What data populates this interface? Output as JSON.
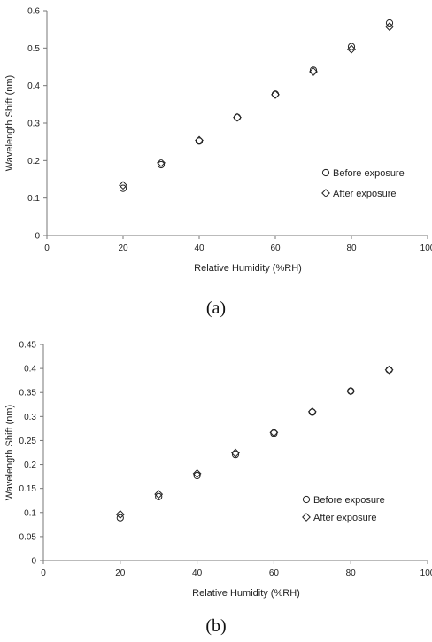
{
  "chart_data": [
    {
      "type": "scatter",
      "caption": "(a)",
      "xlabel": "Relative Humidity (%RH)",
      "ylabel": "Wavelength Shift (nm)",
      "xlim": [
        0,
        100
      ],
      "ylim": [
        0,
        0.6
      ],
      "xticks": [
        "0",
        "20",
        "40",
        "60",
        "80",
        "100"
      ],
      "yticks": [
        "0",
        "0.1",
        "0.2",
        "0.3",
        "0.4",
        "0.5",
        "0.6"
      ],
      "grid": false,
      "legend_position": "right",
      "series": [
        {
          "name": "Before exposure",
          "marker": "circle",
          "x": [
            20,
            30,
            40,
            50,
            60,
            70,
            80,
            90
          ],
          "y": [
            0.126,
            0.189,
            0.252,
            0.315,
            0.377,
            0.441,
            0.504,
            0.567
          ]
        },
        {
          "name": "After exposure",
          "marker": "diamond",
          "x": [
            20,
            30,
            40,
            50,
            60,
            70,
            80,
            90
          ],
          "y": [
            0.134,
            0.194,
            0.254,
            0.315,
            0.376,
            0.437,
            0.497,
            0.557
          ]
        }
      ]
    },
    {
      "type": "scatter",
      "caption": "(b)",
      "xlabel": "Relative Humidity (%RH)",
      "ylabel": "Wavelength Shift (nm)",
      "xlim": [
        0,
        100
      ],
      "ylim": [
        0,
        0.45
      ],
      "xticks": [
        "0",
        "20",
        "40",
        "60",
        "80",
        "100"
      ],
      "yticks": [
        "0",
        "0.05",
        "0.1",
        "0.15",
        "0.2",
        "0.25",
        "0.3",
        "0.35",
        "0.4",
        "0.45"
      ],
      "grid": false,
      "legend_position": "right",
      "series": [
        {
          "name": "Before exposure",
          "marker": "circle",
          "x": [
            20,
            30,
            40,
            50,
            60,
            70,
            80,
            90
          ],
          "y": [
            0.089,
            0.133,
            0.177,
            0.221,
            0.265,
            0.309,
            0.353,
            0.397
          ]
        },
        {
          "name": "After exposure",
          "marker": "diamond",
          "x": [
            20,
            30,
            40,
            50,
            60,
            70,
            80,
            90
          ],
          "y": [
            0.096,
            0.138,
            0.181,
            0.224,
            0.267,
            0.31,
            0.353,
            0.397
          ]
        }
      ]
    }
  ]
}
